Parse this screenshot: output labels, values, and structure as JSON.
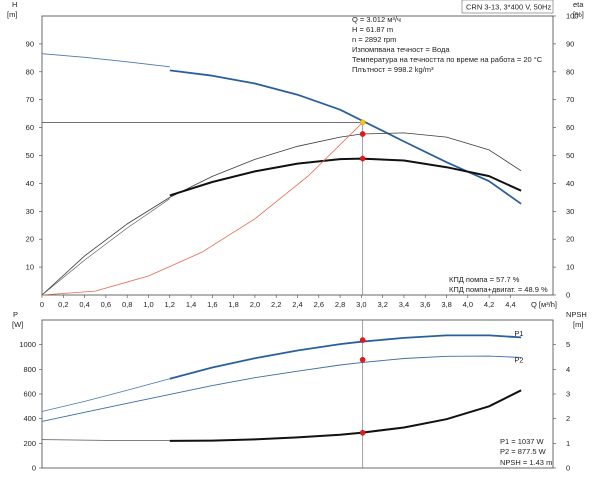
{
  "chart_data": [
    {
      "type": "line",
      "panel": "head",
      "title_box": "CRN 3-13, 3*400 V, 50Hz",
      "left_axis": {
        "label": "H",
        "unit": "[m]",
        "range": [
          0,
          100
        ],
        "ticks": [
          10,
          20,
          30,
          40,
          50,
          60,
          70,
          80,
          90
        ]
      },
      "right_axis": {
        "label": "eta",
        "unit": "[%]",
        "range": [
          0,
          100
        ],
        "ticks": [
          0,
          10,
          20,
          30,
          40,
          50,
          60,
          70,
          80,
          90,
          100
        ]
      },
      "x_axis": {
        "label": "Q [м³/h]",
        "range": [
          0,
          4.8
        ],
        "ticks": [
          "0",
          "0,2",
          "0,4",
          "0,6",
          "0,8",
          "1,0",
          "1,2",
          "1,4",
          "1,6",
          "1,8",
          "2,0",
          "2,2",
          "2,4",
          "2,6",
          "2,8",
          "3,0",
          "3,2",
          "3,4",
          "3,6",
          "3,8",
          "4,0",
          "4,2",
          "4,4"
        ]
      },
      "info_lines": [
        "Q = 3.012 м³/ч",
        "H = 61.87 m",
        "n = 2892 rpm",
        "Изпомпвана течност = Вода",
        "Температура на течността по време на работа = 20 °C",
        "Плътност = 998.2 kg/m³"
      ],
      "bottom_notes": [
        "КПД помпа = 57.7 %",
        "КПД помпа+двигат. = 48.9 %"
      ],
      "duty_point": {
        "q": 3.012,
        "h": 61.87
      },
      "series": [
        {
          "role": "head-extended",
          "color": "#4a78b0",
          "width": 0.8,
          "points": [
            [
              0,
              86.5
            ],
            [
              0.4,
              85.2
            ],
            [
              0.8,
              83.6
            ],
            [
              1.2,
              81.8
            ]
          ]
        },
        {
          "role": "head",
          "color": "#2a5f9e",
          "width": 1.8,
          "points": [
            [
              1.2,
              80.5
            ],
            [
              1.6,
              78.6
            ],
            [
              2.0,
              75.8
            ],
            [
              2.4,
              71.8
            ],
            [
              2.8,
              66.4
            ],
            [
              3.0,
              62.6
            ],
            [
              3.4,
              55
            ],
            [
              3.8,
              47.6
            ],
            [
              4.2,
              40.8
            ],
            [
              4.5,
              32.7
            ]
          ]
        },
        {
          "role": "eta-pump",
          "color": "#3b3b3b",
          "width": 0.8,
          "points": [
            [
              0,
              0
            ],
            [
              0.4,
              14
            ],
            [
              0.8,
              25.5
            ],
            [
              1.2,
              35
            ],
            [
              1.6,
              42.5
            ],
            [
              2.0,
              48.6
            ],
            [
              2.4,
              53.3
            ],
            [
              2.8,
              56.6
            ],
            [
              3.0,
              57.7
            ],
            [
              3.4,
              58.1
            ],
            [
              3.8,
              56.6
            ],
            [
              4.2,
              52
            ],
            [
              4.5,
              44.5
            ]
          ]
        },
        {
          "role": "eta-total-thin",
          "color": "#555555",
          "width": 0.6,
          "points": [
            [
              0,
              0
            ],
            [
              0.4,
              12.5
            ],
            [
              0.8,
              24
            ],
            [
              1.2,
              34.5
            ]
          ]
        },
        {
          "role": "eta-total",
          "color": "#111111",
          "width": 2,
          "points": [
            [
              1.2,
              35.7
            ],
            [
              1.6,
              40.5
            ],
            [
              2.0,
              44.3
            ],
            [
              2.4,
              47.1
            ],
            [
              2.8,
              48.7
            ],
            [
              3.0,
              48.9
            ],
            [
              3.4,
              48.2
            ],
            [
              3.8,
              45.8
            ],
            [
              4.2,
              42.6
            ],
            [
              4.5,
              37.4
            ]
          ]
        },
        {
          "role": "system-curve",
          "color": "#e36a50",
          "width": 0.8,
          "points": [
            [
              0,
              0
            ],
            [
              0.5,
              1.4
            ],
            [
              1.0,
              6.8
            ],
            [
              1.5,
              15.3
            ],
            [
              2.0,
              27.3
            ],
            [
              2.5,
              42.6
            ],
            [
              3.012,
              61.87
            ]
          ]
        }
      ],
      "markers": [
        {
          "q": 3.012,
          "value": 61.87,
          "color": "#f5c518",
          "axis": "left"
        },
        {
          "q": 3.012,
          "value": 57.7,
          "color": "#e21b1b",
          "axis": "right"
        },
        {
          "q": 3.012,
          "value": 48.9,
          "color": "#e21b1b",
          "axis": "right"
        }
      ]
    },
    {
      "type": "line",
      "panel": "power",
      "left_axis": {
        "label": "P",
        "unit": "[W]",
        "range": [
          0,
          1200
        ],
        "ticks": [
          0,
          200,
          400,
          600,
          800,
          1000
        ]
      },
      "right_axis": {
        "label": "NPSH",
        "unit": "[m]",
        "range": [
          0,
          6
        ],
        "ticks": [
          0,
          1,
          2,
          3,
          4,
          5
        ]
      },
      "x_axis": {
        "range": [
          0,
          4.8
        ]
      },
      "notes": [
        "P1 = 1037 W",
        "P2 = 877.5 W",
        "NPSH = 1.43 m"
      ],
      "series": [
        {
          "name": "P1",
          "color": "#2a5f9e",
          "width": 1.8,
          "points": [
            [
              1.2,
              724
            ],
            [
              1.6,
              815
            ],
            [
              2.0,
              890
            ],
            [
              2.4,
              953
            ],
            [
              2.8,
              1005
            ],
            [
              3.0,
              1024
            ],
            [
              3.4,
              1055
            ],
            [
              3.8,
              1075
            ],
            [
              4.2,
              1075
            ],
            [
              4.5,
              1059
            ]
          ],
          "label_at": [
            4.4,
            1072
          ]
        },
        {
          "name": "P1-extended",
          "color": "#4a78b0",
          "width": 0.8,
          "points": [
            [
              0,
              458
            ],
            [
              0.4,
              540
            ],
            [
              0.8,
              630
            ],
            [
              1.2,
              724
            ]
          ]
        },
        {
          "name": "P2",
          "color": "#3a6ea6",
          "width": 0.9,
          "points": [
            [
              0,
              378
            ],
            [
              0.4,
              452
            ],
            [
              0.8,
              525
            ],
            [
              1.2,
              597
            ],
            [
              1.6,
              668
            ],
            [
              2.0,
              732
            ],
            [
              2.4,
              785
            ],
            [
              2.8,
              835
            ],
            [
              3.0,
              855
            ],
            [
              3.4,
              888
            ],
            [
              3.8,
              906
            ],
            [
              4.2,
              907
            ],
            [
              4.5,
              897
            ]
          ],
          "label_at": [
            4.4,
            855
          ]
        },
        {
          "name": "NPSH-extended",
          "color": "#555555",
          "width": 0.8,
          "points": [
            [
              0,
              1.15
            ],
            [
              0.6,
              1.12
            ],
            [
              1.2,
              1.11
            ]
          ]
        },
        {
          "name": "NPSH",
          "color": "#111111",
          "width": 2,
          "points": [
            [
              1.2,
              1.1
            ],
            [
              1.6,
              1.11
            ],
            [
              2.0,
              1.16
            ],
            [
              2.4,
              1.24
            ],
            [
              2.8,
              1.35
            ],
            [
              3.0,
              1.43
            ],
            [
              3.4,
              1.64
            ],
            [
              3.8,
              1.98
            ],
            [
              4.2,
              2.5
            ],
            [
              4.5,
              3.15
            ]
          ]
        }
      ],
      "markers": [
        {
          "q": 3.012,
          "value": 1037,
          "color": "#e21b1b",
          "axis": "left"
        },
        {
          "q": 3.012,
          "value": 877.5,
          "color": "#e21b1b",
          "axis": "left"
        },
        {
          "q": 3.012,
          "value": 1.43,
          "color": "#e21b1b",
          "axis": "right"
        }
      ]
    }
  ]
}
